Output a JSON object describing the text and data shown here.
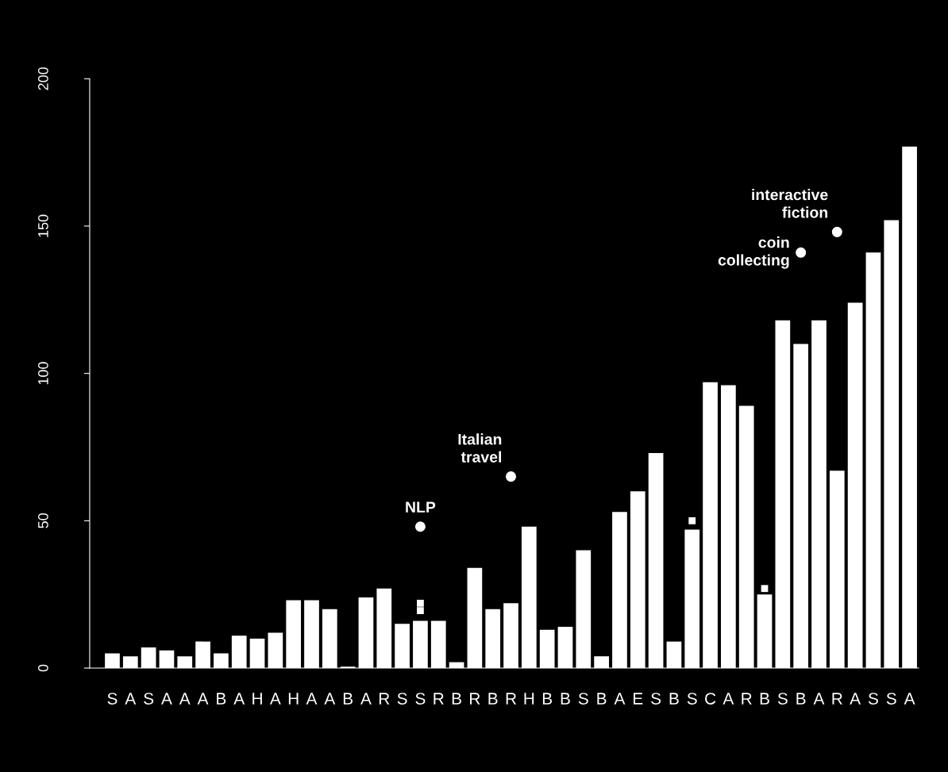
{
  "chart_data": {
    "type": "bar",
    "categories": [
      "S",
      "A",
      "S",
      "A",
      "A",
      "A",
      "B",
      "A",
      "H",
      "A",
      "H",
      "A",
      "A",
      "B",
      "A",
      "R",
      "S",
      "S",
      "R",
      "B",
      "R",
      "B",
      "R",
      "H",
      "B",
      "B",
      "S",
      "B",
      "A",
      "E",
      "S",
      "B",
      "S",
      "C",
      "A",
      "R",
      "B",
      "S",
      "B",
      "A",
      "R",
      "A",
      "S",
      "S",
      "A"
    ],
    "series": [
      {
        "color": "#ffffff",
        "values": [
          5,
          4,
          7,
          6,
          4,
          9,
          5,
          11,
          10,
          12,
          23,
          23,
          20,
          0.5,
          24,
          27,
          15,
          16,
          16,
          2,
          34,
          20,
          22,
          48,
          13,
          14,
          40,
          4,
          53,
          60,
          73,
          9,
          47,
          97,
          96,
          89,
          25,
          118,
          110,
          118,
          67,
          124,
          141,
          152,
          177
        ]
      },
      {
        "type": "scatter",
        "color": "#ffffff",
        "marker": "square",
        "values": [
          null,
          null,
          null,
          null,
          null,
          null,
          null,
          null,
          null,
          null,
          null,
          null,
          null,
          null,
          null,
          null,
          null,
          19.5,
          null,
          null,
          null,
          null,
          null,
          null,
          null,
          null,
          null,
          null,
          null,
          null,
          null,
          null,
          50,
          null,
          null,
          null,
          27,
          null,
          null,
          null,
          null,
          null,
          null,
          null,
          null
        ]
      },
      {
        "type": "scatter",
        "color": "#ffffff",
        "marker": "square",
        "values": [
          null,
          null,
          null,
          null,
          null,
          null,
          null,
          null,
          null,
          null,
          null,
          null,
          null,
          null,
          null,
          null,
          null,
          22,
          null,
          null,
          null,
          null,
          null,
          null,
          null,
          null,
          null,
          null,
          null,
          null,
          null,
          null,
          null,
          null,
          null,
          null,
          null,
          null,
          null,
          null,
          null,
          null,
          null,
          null,
          null
        ]
      },
      {
        "type": "scatter",
        "color": "#ffffff",
        "marker": "circle",
        "values": [
          null,
          null,
          null,
          null,
          null,
          null,
          null,
          null,
          null,
          null,
          null,
          null,
          null,
          null,
          null,
          null,
          null,
          48,
          null,
          null,
          null,
          null,
          65,
          null,
          null,
          null,
          null,
          null,
          null,
          null,
          null,
          null,
          null,
          null,
          null,
          null,
          null,
          null,
          141,
          null,
          148,
          null,
          null,
          null,
          null
        ],
        "value_labels": [
          null,
          null,
          null,
          null,
          null,
          null,
          null,
          null,
          null,
          null,
          null,
          null,
          null,
          null,
          null,
          null,
          null,
          "NLP",
          null,
          null,
          null,
          null,
          "Italian\ntravel",
          null,
          null,
          null,
          null,
          null,
          null,
          null,
          null,
          null,
          null,
          null,
          null,
          null,
          null,
          null,
          "coin\ncollecting",
          null,
          "interactive\nfiction",
          null,
          null,
          null,
          null
        ]
      }
    ],
    "ylim": [
      0,
      200
    ],
    "yticks": [
      0,
      50,
      100,
      150,
      200
    ],
    "grid": false,
    "legend": false
  }
}
